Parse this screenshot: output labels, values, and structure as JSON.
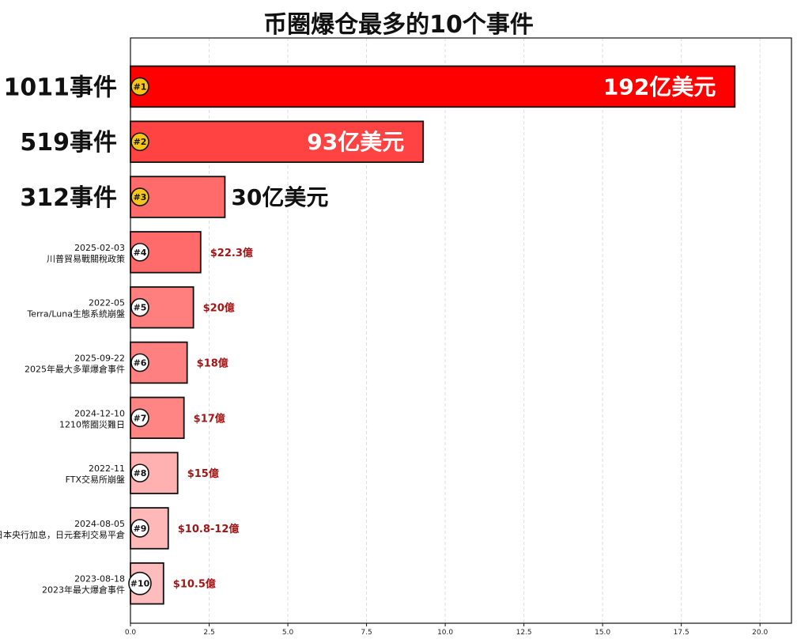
{
  "chart_data": {
    "type": "bar",
    "orientation": "horizontal",
    "title": "币圈爆仓最多的10个事件",
    "xlim": [
      0,
      21
    ],
    "xticks": [
      "0.0",
      "2.5",
      "5.0",
      "7.5",
      "10.0",
      "12.5",
      "15.0",
      "17.5",
      "20.0"
    ],
    "grid": true,
    "items": [
      {
        "rank": "#1",
        "label": "1011事件",
        "date": "",
        "value": 19.2,
        "value_label": "192亿美元",
        "color": "#ff0000",
        "style": "big"
      },
      {
        "rank": "#2",
        "label": "519事件",
        "date": "",
        "value": 9.3,
        "value_label": "93亿美元",
        "color": "#ff4242",
        "style": "big"
      },
      {
        "rank": "#3",
        "label": "312事件",
        "date": "",
        "value": 3.0,
        "value_label": "30亿美元",
        "color": "#ff6b6b",
        "style": "big"
      },
      {
        "rank": "#4",
        "label": "川普貿易戰關稅政策",
        "date": "2025-02-03",
        "value": 2.23,
        "value_label": "$22.3億",
        "color": "#ff6b6b",
        "style": "small"
      },
      {
        "rank": "#5",
        "label": "Terra/Luna生態系統崩盤",
        "date": "2022-05",
        "value": 2.0,
        "value_label": "$20億",
        "color": "#ff7f7f",
        "style": "small"
      },
      {
        "rank": "#6",
        "label": "2025年最大多單爆倉事件",
        "date": "2025-09-22",
        "value": 1.8,
        "value_label": "$18億",
        "color": "#ff8080",
        "style": "small"
      },
      {
        "rank": "#7",
        "label": "1210幣圈災難日",
        "date": "2024-12-10",
        "value": 1.7,
        "value_label": "$17億",
        "color": "#ff8585",
        "style": "small"
      },
      {
        "rank": "#8",
        "label": "FTX交易所崩盤",
        "date": "2022-11",
        "value": 1.5,
        "value_label": "$15億",
        "color": "#ffb0b0",
        "style": "small"
      },
      {
        "rank": "#9",
        "label": "日本央行加息，日元套利交易平倉",
        "date": "2024-08-05",
        "value": 1.2,
        "value_label": "$10.8-12億",
        "color": "#ffb8b8",
        "style": "small"
      },
      {
        "rank": "#10",
        "label": "2023年最大爆倉事件",
        "date": "2023-08-18",
        "value": 1.05,
        "value_label": "$10.5億",
        "color": "#ffbcbc",
        "style": "small"
      }
    ]
  }
}
